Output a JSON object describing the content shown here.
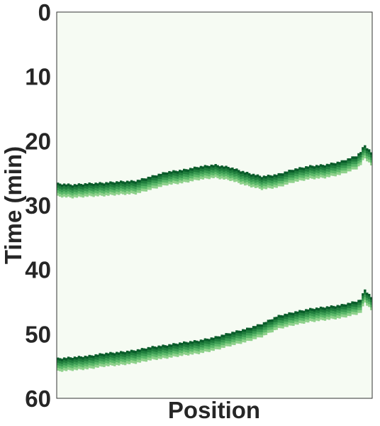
{
  "chart_data": {
    "type": "heatmap",
    "title": "",
    "xlabel": "Position",
    "ylabel": "Time (min)",
    "ylim": [
      0,
      60
    ],
    "y_inverted": true,
    "y_ticks": [
      0,
      10,
      20,
      30,
      40,
      50,
      60
    ],
    "x_ticks": [],
    "grid": false,
    "colormap": "Greens",
    "background_color": "#f6fbf3",
    "band_colors": [
      "#0a5c2a",
      "#1f7d3c",
      "#3a9b52",
      "#5cb96a",
      "#8fd18c"
    ],
    "x_position_fraction": [
      0.0,
      0.05,
      0.1,
      0.15,
      0.2,
      0.25,
      0.3,
      0.35,
      0.4,
      0.45,
      0.5,
      0.55,
      0.6,
      0.65,
      0.7,
      0.75,
      0.8,
      0.85,
      0.9,
      0.95,
      0.965,
      0.975,
      1.0
    ],
    "series": [
      {
        "name": "",
        "leading_edge_time_min": [
          26.6,
          26.8,
          26.6,
          26.5,
          26.3,
          26.2,
          25.5,
          24.8,
          24.5,
          24.0,
          23.7,
          24.1,
          24.9,
          25.5,
          25.2,
          24.4,
          23.9,
          23.7,
          23.2,
          22.3,
          21.6,
          20.6,
          21.9
        ]
      },
      {
        "name": "",
        "leading_edge_time_min": [
          53.8,
          53.6,
          53.4,
          53.0,
          52.8,
          52.5,
          52.0,
          51.7,
          51.3,
          51.0,
          50.5,
          49.8,
          49.2,
          48.4,
          47.2,
          46.6,
          46.1,
          45.8,
          45.5,
          44.9,
          44.6,
          43.0,
          44.4
        ]
      }
    ],
    "band_thickness_min": 2.0
  }
}
